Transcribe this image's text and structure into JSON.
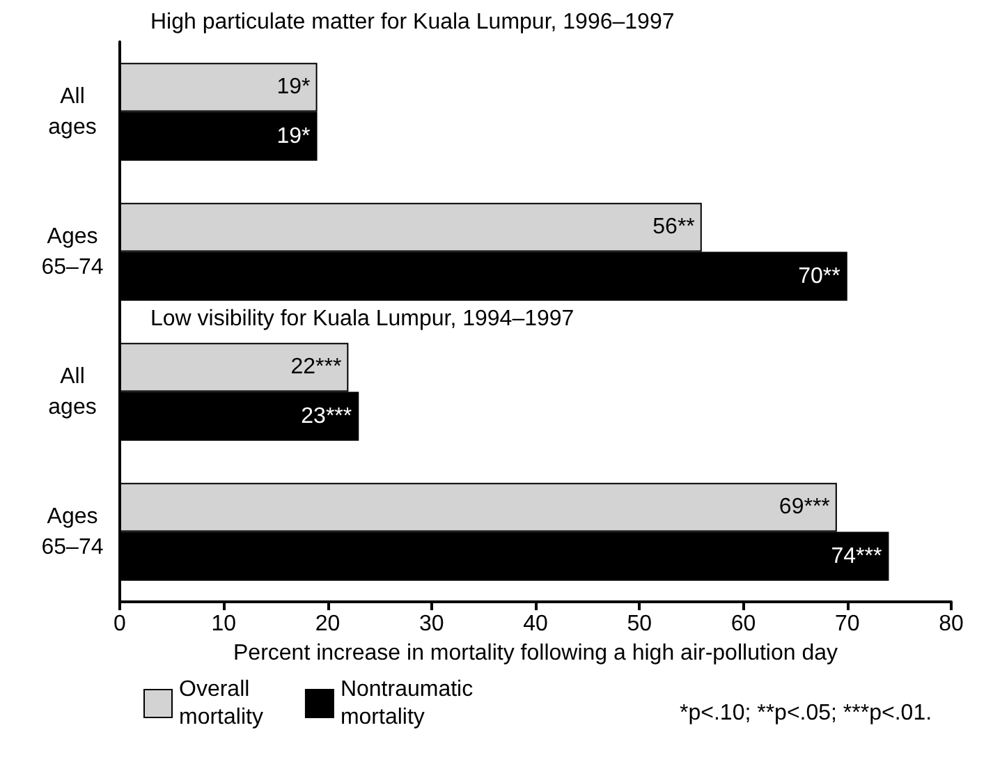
{
  "chart_data": {
    "type": "bar",
    "orientation": "horizontal",
    "categories": [
      "All ages",
      "Ages 65–74",
      "All ages",
      "Ages 65–74"
    ],
    "series": [
      {
        "name": "Overall mortality",
        "color": "#d3d3d3",
        "values": [
          19,
          56,
          22,
          69
        ],
        "value_labels": [
          "19*",
          "56**",
          "22***",
          "69***"
        ]
      },
      {
        "name": "Nontraumatic mortality",
        "color": "#000000",
        "values": [
          19,
          70,
          23,
          74
        ],
        "value_labels": [
          "19*",
          "70**",
          "23***",
          "74***"
        ]
      }
    ],
    "xlim": [
      0,
      80
    ],
    "xticks": [
      0,
      10,
      20,
      30,
      40,
      50,
      60,
      70,
      80
    ],
    "xlabel": "Percent increase in mortality following a high air-pollution day",
    "annotations": [
      "High particulate matter for Kuala Lumpur, 1996–1997",
      "Low visibility for Kuala Lumpur, 1994–1997",
      "*p<.10; **p<.05; ***p<.01."
    ],
    "legend": "bottom",
    "grid": false
  }
}
